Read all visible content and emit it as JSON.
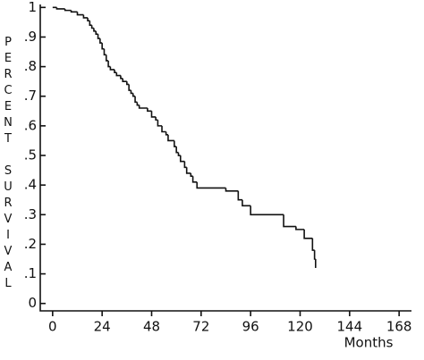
{
  "chart_data": {
    "type": "step",
    "y_label": "PERCENT SURVIVAL",
    "x_label": "Months",
    "color": "#111111",
    "x": [
      0,
      2,
      6,
      9,
      12,
      15,
      17,
      18,
      19,
      20,
      21,
      22,
      23,
      24,
      25,
      26,
      27,
      28,
      30,
      31,
      33,
      34,
      36,
      37,
      38,
      39,
      40,
      41,
      42,
      46,
      48,
      50,
      51,
      53,
      55,
      56,
      59,
      60,
      61,
      62,
      64,
      65,
      67,
      68,
      70,
      84,
      90,
      92,
      96,
      112,
      118,
      122,
      126,
      127,
      127.5
    ],
    "values": [
      1,
      0.995,
      0.99,
      0.985,
      0.975,
      0.965,
      0.955,
      0.94,
      0.93,
      0.92,
      0.91,
      0.895,
      0.88,
      0.86,
      0.84,
      0.82,
      0.8,
      0.79,
      0.78,
      0.77,
      0.76,
      0.75,
      0.74,
      0.72,
      0.71,
      0.7,
      0.68,
      0.67,
      0.66,
      0.65,
      0.63,
      0.62,
      0.6,
      0.58,
      0.57,
      0.55,
      0.53,
      0.51,
      0.5,
      0.48,
      0.46,
      0.44,
      0.43,
      0.41,
      0.39,
      0.38,
      0.35,
      0.33,
      0.3,
      0.26,
      0.25,
      0.22,
      0.18,
      0.15,
      0.12
    ],
    "xlim": [
      -6,
      174
    ],
    "ylim": [
      -0.025,
      1.01
    ],
    "xticks": [
      0,
      24,
      48,
      72,
      96,
      120,
      144,
      168
    ],
    "yticks": [
      0,
      {
        "value": 0.1,
        "label": ".1"
      },
      {
        "value": 0.2,
        "label": ".2"
      },
      {
        "value": 0.3,
        "label": ".3"
      },
      {
        "value": 0.4,
        "label": ".4"
      },
      {
        "value": 0.5,
        "label": ".5"
      },
      {
        "value": 0.6,
        "label": ".6"
      },
      {
        "value": 0.7,
        "label": ".7"
      },
      {
        "value": 0.8,
        "label": ".8"
      },
      {
        "value": 0.9,
        "label": ".9"
      },
      1
    ]
  }
}
